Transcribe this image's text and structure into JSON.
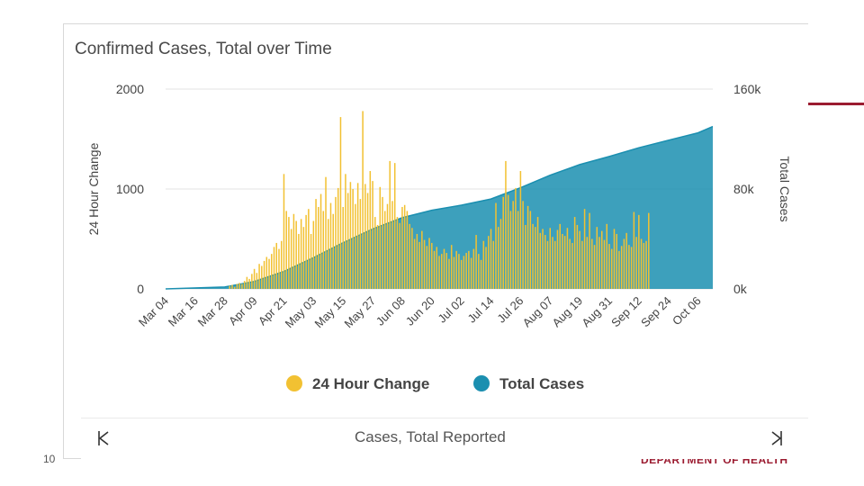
{
  "slide": {
    "number": "10",
    "footer_text": "DEPARTMENT OF HEALTH",
    "accent_color": "#9b1b30"
  },
  "panel": {
    "title": "Confirmed Cases, Total over Time",
    "navigator_label": "Cases, Total Reported",
    "prev_icon": "chevron-left-icon",
    "next_icon": "chevron-right-icon"
  },
  "chart_data": {
    "type": "bar+area",
    "title": "Confirmed Cases, Total over Time",
    "ylabel_left": "24 Hour Change",
    "ylabel_right": "Total Cases",
    "ylim_left": [
      0,
      2000
    ],
    "ylim_right": [
      0,
      160000
    ],
    "yticks_left": [
      {
        "value": 0,
        "label": "0"
      },
      {
        "value": 1000,
        "label": "1000"
      },
      {
        "value": 2000,
        "label": "2000"
      }
    ],
    "yticks_right": [
      {
        "value": 0,
        "label": "0k"
      },
      {
        "value": 80000,
        "label": "80k"
      },
      {
        "value": 160000,
        "label": "160k"
      }
    ],
    "x_start": "2020-03-04",
    "x_end": "2020-10-12",
    "xtick_labels": [
      "Mar 04",
      "Mar 16",
      "Mar 28",
      "Apr 09",
      "Apr 21",
      "May 03",
      "May 15",
      "May 27",
      "Jun 08",
      "Jun 20",
      "Jul 02",
      "Jul 14",
      "Jul 26",
      "Aug 07",
      "Aug 19",
      "Aug 31",
      "Sep 12",
      "Sep 24",
      "Oct 06"
    ],
    "legend": [
      {
        "name": "24 Hour Change",
        "color": "#f2c132"
      },
      {
        "name": "Total Cases",
        "color": "#1b8fb0"
      }
    ],
    "legend_position": "bottom",
    "grid": true,
    "series": [
      {
        "name": "24 Hour Change",
        "type": "bar",
        "axis": "left",
        "color": "#f2c132",
        "values": [
          0,
          0,
          0,
          0,
          0,
          0,
          0,
          0,
          0,
          0,
          0,
          0,
          0,
          0,
          0,
          0,
          0,
          0,
          0,
          0,
          0,
          0,
          0,
          0,
          0,
          0,
          30,
          40,
          20,
          50,
          60,
          50,
          80,
          120,
          100,
          150,
          200,
          160,
          250,
          230,
          280,
          320,
          300,
          350,
          420,
          460,
          400,
          480,
          1150,
          780,
          720,
          600,
          750,
          680,
          550,
          700,
          620,
          740,
          800,
          550,
          680,
          900,
          820,
          950,
          780,
          1120,
          700,
          860,
          750,
          920,
          1010,
          1720,
          820,
          1150,
          960,
          1070,
          1000,
          850,
          1060,
          900,
          1780,
          1050,
          960,
          1180,
          1080,
          720,
          640,
          1020,
          920,
          780,
          850,
          1280,
          880,
          1260,
          720,
          660,
          820,
          840,
          780,
          650,
          610,
          500,
          550,
          470,
          580,
          490,
          430,
          510,
          460,
          380,
          420,
          330,
          350,
          400,
          360,
          300,
          440,
          320,
          380,
          350,
          290,
          330,
          360,
          380,
          310,
          400,
          540,
          350,
          290,
          480,
          420,
          530,
          600,
          480,
          860,
          620,
          700,
          920,
          1280,
          940,
          780,
          880,
          1010,
          780,
          1180,
          880,
          640,
          830,
          780,
          650,
          620,
          720,
          560,
          600,
          540,
          480,
          610,
          520,
          480,
          590,
          650,
          550,
          530,
          610,
          500,
          460,
          720,
          640,
          580,
          480,
          800,
          520,
          760,
          500,
          440,
          620,
          520,
          580,
          490,
          650,
          450,
          400,
          600,
          550,
          380,
          430,
          500,
          560,
          440,
          420,
          770,
          520,
          740,
          500,
          460,
          480,
          760
        ]
      },
      {
        "name": "Total Cases",
        "type": "area",
        "axis": "right",
        "color": "#1b8fb0",
        "points": [
          {
            "x": "2020-03-04",
            "y": 0
          },
          {
            "x": "2020-03-28",
            "y": 1500
          },
          {
            "x": "2020-04-09",
            "y": 6000
          },
          {
            "x": "2020-04-21",
            "y": 14000
          },
          {
            "x": "2020-05-03",
            "y": 25000
          },
          {
            "x": "2020-05-15",
            "y": 37000
          },
          {
            "x": "2020-05-27",
            "y": 48000
          },
          {
            "x": "2020-06-08",
            "y": 57000
          },
          {
            "x": "2020-06-20",
            "y": 63000
          },
          {
            "x": "2020-07-02",
            "y": 67000
          },
          {
            "x": "2020-07-14",
            "y": 72000
          },
          {
            "x": "2020-07-26",
            "y": 81000
          },
          {
            "x": "2020-08-07",
            "y": 91000
          },
          {
            "x": "2020-08-19",
            "y": 99500
          },
          {
            "x": "2020-08-31",
            "y": 106000
          },
          {
            "x": "2020-09-12",
            "y": 113000
          },
          {
            "x": "2020-09-24",
            "y": 119000
          },
          {
            "x": "2020-10-06",
            "y": 125000
          },
          {
            "x": "2020-10-12",
            "y": 130000
          }
        ]
      }
    ]
  }
}
